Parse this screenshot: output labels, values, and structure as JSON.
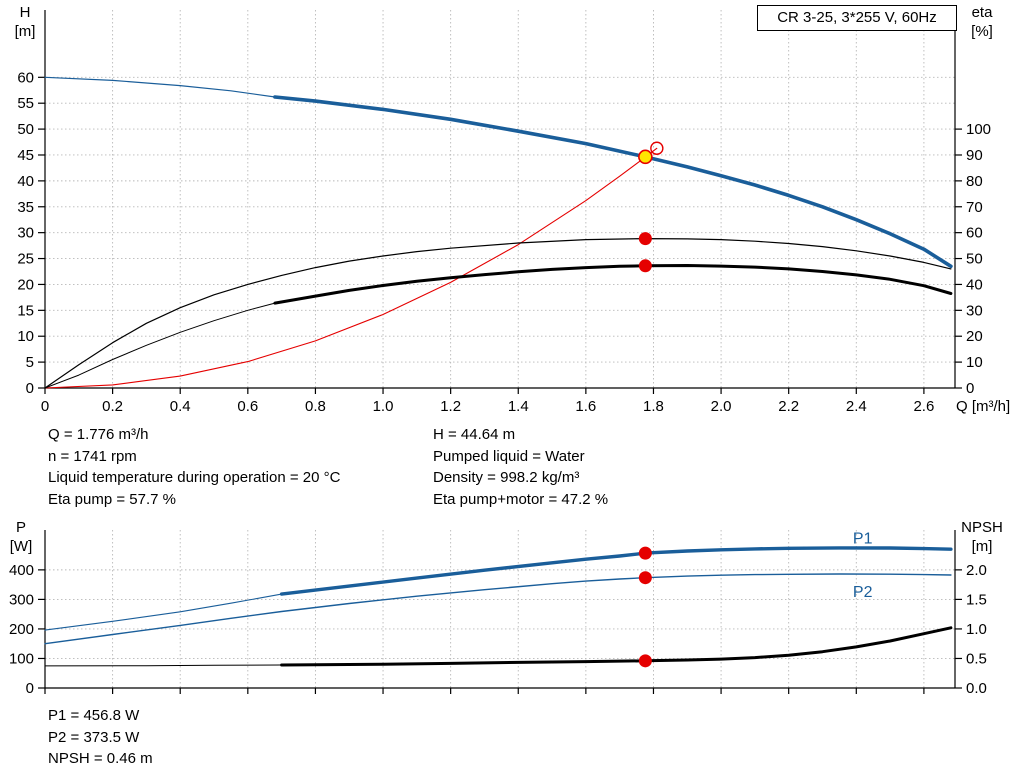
{
  "colors": {
    "curve_blue": "#1a5e9a",
    "curve_red": "#e50000",
    "curve_black": "#000000",
    "dot_yellow": "#ffe500",
    "grid": "#b8b8b8",
    "axis": "#000000"
  },
  "info": {
    "top_left": [
      "Q = 1.776 m³/h",
      "n = 1741 rpm",
      "Liquid temperature during operation = 20 °C",
      "Eta pump = 57.7 %"
    ],
    "top_right": [
      "H = 44.64 m",
      "Pumped liquid = Water",
      "Density = 998.2 kg/m³",
      "Eta pump+motor = 47.2 %"
    ],
    "bottom": [
      "P1 = 456.8 W",
      "P2 = 373.5 W",
      "NPSH = 0.46 m"
    ]
  },
  "chart_data": [
    {
      "type": "line",
      "name": "head-efficiency-chart",
      "title": "CR 3-25, 3*255 V, 60Hz",
      "x_axis": {
        "label": "Q [m³/h]",
        "min": 0,
        "max": 2.692,
        "tick_values": [
          0,
          0.2,
          0.4,
          0.6,
          0.8,
          1.0,
          1.2,
          1.4,
          1.6,
          1.8,
          2.0,
          2.2,
          2.4,
          2.6
        ],
        "tick_labels": [
          "0",
          "0.2",
          "0.4",
          "0.6",
          "0.8",
          "1.0",
          "1.2",
          "1.4",
          "1.6",
          "1.8",
          "2.0",
          "2.2",
          "2.4",
          "2.6"
        ],
        "show_tick_labels": true
      },
      "y_left": {
        "label_lines": [
          "H",
          "[m]"
        ],
        "min": 0,
        "max": 73,
        "tick_values": [
          0,
          5,
          10,
          15,
          20,
          25,
          30,
          35,
          40,
          45,
          50,
          55,
          60
        ],
        "tick_labels": [
          "0",
          "5",
          "10",
          "15",
          "20",
          "25",
          "30",
          "35",
          "40",
          "45",
          "50",
          "55",
          "60"
        ]
      },
      "y_right": {
        "label_lines": [
          "eta",
          "[%]"
        ],
        "min": 0,
        "max": 146,
        "tick_values": [
          0,
          10,
          20,
          30,
          40,
          50,
          60,
          70,
          80,
          90,
          100
        ],
        "tick_labels": [
          "0",
          "10",
          "20",
          "30",
          "40",
          "50",
          "60",
          "70",
          "80",
          "90",
          "100"
        ]
      },
      "series": [
        {
          "name": "head-curve-extrapolated",
          "axis": "left",
          "color": "blue",
          "width": 1.2,
          "points": [
            [
              0,
              60
            ],
            [
              0.2,
              59.4
            ],
            [
              0.4,
              58.4
            ],
            [
              0.55,
              57.4
            ],
            [
              0.68,
              56.2
            ]
          ]
        },
        {
          "name": "head-curve",
          "axis": "left",
          "color": "blue",
          "width": 3.6,
          "points": [
            [
              0.68,
              56.2
            ],
            [
              0.8,
              55.4
            ],
            [
              1.0,
              53.8
            ],
            [
              1.2,
              51.9
            ],
            [
              1.4,
              49.6
            ],
            [
              1.6,
              47.2
            ],
            [
              1.776,
              44.64
            ],
            [
              1.9,
              42.7
            ],
            [
              2.0,
              41.0
            ],
            [
              2.1,
              39.2
            ],
            [
              2.2,
              37.2
            ],
            [
              2.3,
              35.0
            ],
            [
              2.4,
              32.5
            ],
            [
              2.5,
              29.8
            ],
            [
              2.6,
              26.8
            ],
            [
              2.68,
              23.5
            ]
          ]
        },
        {
          "name": "system-curve",
          "axis": "left",
          "color": "red",
          "width": 1.1,
          "points": [
            [
              0,
              0
            ],
            [
              0.2,
              0.6
            ],
            [
              0.4,
              2.3
            ],
            [
              0.6,
              5.1
            ],
            [
              0.8,
              9.1
            ],
            [
              1.0,
              14.2
            ],
            [
              1.2,
              20.4
            ],
            [
              1.4,
              27.7
            ],
            [
              1.6,
              36.2
            ],
            [
              1.7,
              40.9
            ],
            [
              1.776,
              44.6
            ],
            [
              1.81,
              46.3
            ]
          ]
        },
        {
          "name": "eta-pump-curve",
          "axis": "right",
          "color": "black",
          "width": 1.2,
          "points": [
            [
              0,
              0
            ],
            [
              0.1,
              9
            ],
            [
              0.2,
              17.5
            ],
            [
              0.3,
              25
            ],
            [
              0.4,
              31
            ],
            [
              0.5,
              36
            ],
            [
              0.6,
              40
            ],
            [
              0.7,
              43.5
            ],
            [
              0.8,
              46.5
            ],
            [
              0.9,
              49
            ],
            [
              1.0,
              51
            ],
            [
              1.1,
              52.7
            ],
            [
              1.2,
              54
            ],
            [
              1.4,
              56
            ],
            [
              1.6,
              57.3
            ],
            [
              1.776,
              57.7
            ],
            [
              1.9,
              57.6
            ],
            [
              2.0,
              57.3
            ],
            [
              2.1,
              56.7
            ],
            [
              2.2,
              55.8
            ],
            [
              2.3,
              54.6
            ],
            [
              2.4,
              53
            ],
            [
              2.5,
              51
            ],
            [
              2.6,
              48.5
            ],
            [
              2.68,
              46
            ]
          ]
        },
        {
          "name": "eta-pump-motor-extrapolated",
          "axis": "right",
          "color": "black",
          "width": 1,
          "points": [
            [
              0,
              0
            ],
            [
              0.1,
              5
            ],
            [
              0.2,
              11
            ],
            [
              0.3,
              16.5
            ],
            [
              0.4,
              21.5
            ],
            [
              0.5,
              26
            ],
            [
              0.6,
              30
            ],
            [
              0.68,
              32.8
            ]
          ]
        },
        {
          "name": "eta-pump-motor-curve",
          "axis": "right",
          "color": "black",
          "width": 3,
          "points": [
            [
              0.68,
              32.8
            ],
            [
              0.8,
              35.5
            ],
            [
              0.9,
              37.7
            ],
            [
              1.0,
              39.6
            ],
            [
              1.1,
              41.2
            ],
            [
              1.2,
              42.6
            ],
            [
              1.3,
              43.8
            ],
            [
              1.4,
              44.9
            ],
            [
              1.5,
              45.8
            ],
            [
              1.6,
              46.5
            ],
            [
              1.7,
              47.0
            ],
            [
              1.776,
              47.2
            ],
            [
              1.9,
              47.3
            ],
            [
              2.0,
              47.1
            ],
            [
              2.1,
              46.7
            ],
            [
              2.2,
              46.0
            ],
            [
              2.3,
              45.0
            ],
            [
              2.4,
              43.7
            ],
            [
              2.5,
              42.0
            ],
            [
              2.6,
              39.5
            ],
            [
              2.68,
              36.5
            ]
          ]
        }
      ],
      "markers": [
        {
          "name": "duty-point-eta-pump",
          "x": 1.776,
          "y": 57.7,
          "axis": "right",
          "style": "dot-red"
        },
        {
          "name": "duty-point-eta-pump-motor",
          "x": 1.776,
          "y": 47.2,
          "axis": "right",
          "style": "dot-red"
        },
        {
          "name": "system-curve-end",
          "x": 1.81,
          "y": 46.3,
          "axis": "left",
          "style": "circle-red"
        },
        {
          "name": "duty-point-head",
          "x": 1.776,
          "y": 44.64,
          "axis": "left",
          "style": "dot-yellow"
        }
      ],
      "labels": []
    },
    {
      "type": "line",
      "name": "power-npsh-chart",
      "x_axis": {
        "label": "",
        "min": 0,
        "max": 2.692,
        "tick_values": [
          0,
          0.2,
          0.4,
          0.6,
          0.8,
          1.0,
          1.2,
          1.4,
          1.6,
          1.8,
          2.0,
          2.2,
          2.4,
          2.6
        ],
        "tick_labels": [],
        "show_tick_labels": false
      },
      "y_left": {
        "label_lines": [
          "P",
          "[W]"
        ],
        "min": 0,
        "max": 535,
        "tick_values": [
          0,
          100,
          200,
          300,
          400
        ],
        "tick_labels": [
          "0",
          "100",
          "200",
          "300",
          "400"
        ]
      },
      "y_right": {
        "label_lines": [
          "NPSH",
          "[m]"
        ],
        "min": 0,
        "max": 2.675,
        "tick_values": [
          0,
          0.5,
          1.0,
          1.5,
          2.0
        ],
        "tick_labels": [
          "0.0",
          "0.5",
          "1.0",
          "1.5",
          "2.0"
        ]
      },
      "series": [
        {
          "name": "p1-extrapolated",
          "axis": "left",
          "color": "blue",
          "width": 1.1,
          "points": [
            [
              0,
              196
            ],
            [
              0.2,
              226
            ],
            [
              0.4,
              258
            ],
            [
              0.55,
              287
            ],
            [
              0.7,
              318
            ]
          ]
        },
        {
          "name": "p1-curve",
          "axis": "left",
          "color": "blue",
          "width": 3.4,
          "points": [
            [
              0.7,
              318
            ],
            [
              0.9,
              345
            ],
            [
              1.1,
              372
            ],
            [
              1.3,
              399
            ],
            [
              1.5,
              424
            ],
            [
              1.6,
              436
            ],
            [
              1.7,
              447
            ],
            [
              1.776,
              456.8
            ],
            [
              1.9,
              464
            ],
            [
              2.0,
              468
            ],
            [
              2.1,
              471
            ],
            [
              2.2,
              473
            ],
            [
              2.35,
              474.5
            ],
            [
              2.5,
              474
            ],
            [
              2.6,
              472
            ],
            [
              2.68,
              470
            ]
          ]
        },
        {
          "name": "p2-curve",
          "axis": "left",
          "color": "blue",
          "width": 1.4,
          "points": [
            [
              0,
              150
            ],
            [
              0.2,
              181
            ],
            [
              0.4,
              212
            ],
            [
              0.55,
              236
            ],
            [
              0.7,
              259
            ],
            [
              0.9,
              286
            ],
            [
              1.1,
              311
            ],
            [
              1.3,
              333
            ],
            [
              1.5,
              353
            ],
            [
              1.6,
              362
            ],
            [
              1.7,
              369
            ],
            [
              1.776,
              373.5
            ],
            [
              1.9,
              379
            ],
            [
              2.0,
              382
            ],
            [
              2.1,
              384
            ],
            [
              2.2,
              385
            ],
            [
              2.35,
              386
            ],
            [
              2.5,
              385.5
            ],
            [
              2.6,
              384
            ],
            [
              2.68,
              382.5
            ]
          ]
        },
        {
          "name": "npsh-extrapolated",
          "axis": "right",
          "color": "black",
          "width": 1,
          "points": [
            [
              0,
              0.375
            ],
            [
              0.3,
              0.378
            ],
            [
              0.5,
              0.384
            ],
            [
              0.7,
              0.39
            ]
          ]
        },
        {
          "name": "npsh-curve",
          "axis": "right",
          "color": "black",
          "width": 3,
          "points": [
            [
              0.7,
              0.39
            ],
            [
              1.0,
              0.403
            ],
            [
              1.2,
              0.417
            ],
            [
              1.4,
              0.433
            ],
            [
              1.6,
              0.447
            ],
            [
              1.776,
              0.46
            ],
            [
              1.9,
              0.474
            ],
            [
              2.0,
              0.49
            ],
            [
              2.1,
              0.515
            ],
            [
              2.2,
              0.555
            ],
            [
              2.3,
              0.615
            ],
            [
              2.4,
              0.695
            ],
            [
              2.5,
              0.795
            ],
            [
              2.6,
              0.92
            ],
            [
              2.68,
              1.02
            ]
          ]
        }
      ],
      "markers": [
        {
          "name": "duty-point-p1",
          "x": 1.776,
          "y": 456.8,
          "axis": "left",
          "style": "dot-red"
        },
        {
          "name": "duty-point-p2",
          "x": 1.776,
          "y": 373.5,
          "axis": "left",
          "style": "dot-red"
        },
        {
          "name": "duty-point-npsh",
          "x": 1.776,
          "y": 0.46,
          "axis": "right",
          "style": "dot-red"
        }
      ],
      "labels": [
        {
          "name": "p1-curve-label",
          "text": "P1",
          "x": 2.39,
          "y": 490,
          "axis": "left",
          "color": "blue"
        },
        {
          "name": "p2-curve-label",
          "text": "P2",
          "x": 2.39,
          "y": 308,
          "axis": "left",
          "color": "blue"
        }
      ]
    }
  ]
}
